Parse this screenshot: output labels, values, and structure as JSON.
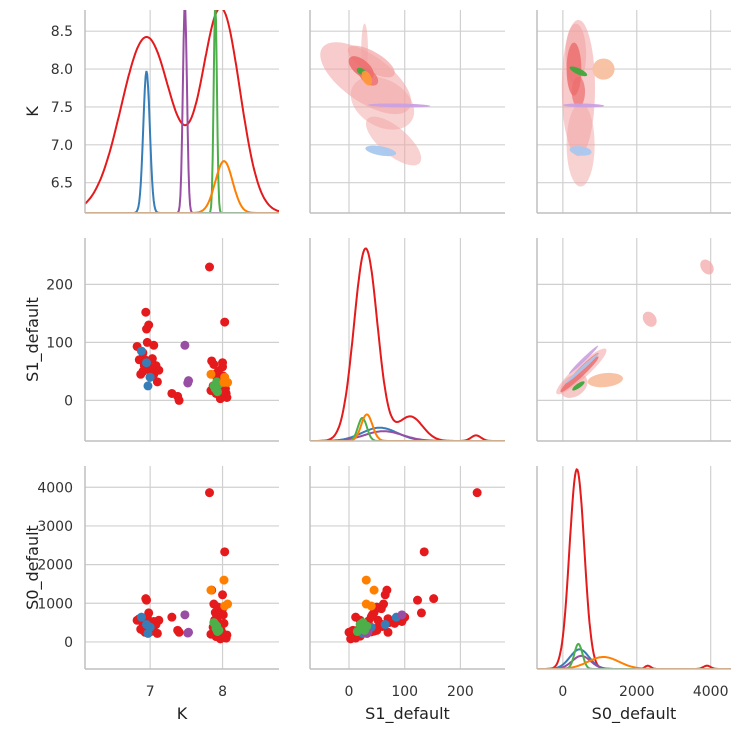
{
  "chart_data": {
    "type": "pairplot",
    "variables": [
      "K",
      "S1_default",
      "S0_default"
    ],
    "axis_labels": {
      "x": [
        "K",
        "S1_default",
        "S0_default"
      ],
      "y": [
        "K",
        "S1_default",
        "S0_default"
      ]
    },
    "ranges": {
      "K": [
        6.1,
        8.78
      ],
      "S1_default": [
        -70,
        280
      ],
      "S0_default": [
        -700,
        4550
      ]
    },
    "density_ranges": {
      "K": [
        0,
        0.9
      ],
      "S1_default": [
        0,
        0.029
      ],
      "S0_default": [
        0,
        0.00186
      ]
    },
    "ticks": {
      "K": {
        "x": [
          {
            "v": 7,
            "label": "7"
          },
          {
            "v": 8,
            "label": "8"
          }
        ],
        "y": [
          {
            "v": 6.5,
            "label": "6.5"
          },
          {
            "v": 7.0,
            "label": "7.0"
          },
          {
            "v": 7.5,
            "label": "7.5"
          },
          {
            "v": 8.0,
            "label": "8.0"
          },
          {
            "v": 8.5,
            "label": "8.5"
          }
        ]
      },
      "S1_default": {
        "x": [
          {
            "v": 0,
            "label": "0"
          },
          {
            "v": 100,
            "label": "100"
          },
          {
            "v": 200,
            "label": "200"
          }
        ],
        "y": [
          {
            "v": 0,
            "label": "0"
          },
          {
            "v": 100,
            "label": "100"
          },
          {
            "v": 200,
            "label": "200"
          }
        ]
      },
      "S0_default": {
        "x": [
          {
            "v": 0,
            "label": "0"
          },
          {
            "v": 2000,
            "label": "2000"
          },
          {
            "v": 4000,
            "label": "4000"
          }
        ],
        "y": [
          {
            "v": 0,
            "label": "0"
          },
          {
            "v": 1000,
            "label": "1000"
          },
          {
            "v": 2000,
            "label": "2000"
          },
          {
            "v": 3000,
            "label": "3000"
          },
          {
            "v": 4000,
            "label": "4000"
          }
        ]
      }
    },
    "grid": true,
    "groups": [
      {
        "color": "#e41a1c",
        "kde": {
          "K": [
            [
              6.95,
              0.35,
              0.78
            ],
            [
              7.98,
              0.26,
              0.9
            ]
          ],
          "S1_default": [
            [
              30,
              21,
              0.0275
            ],
            [
              110,
              22,
              0.0035
            ],
            [
              228,
              9,
              0.0008
            ]
          ],
          "S0_default": [
            [
              380,
              200,
              0.00183
            ],
            [
              2300,
              80,
              3e-05
            ],
            [
              3900,
              100,
              3e-05
            ]
          ]
        },
        "points": [
          [
            6.82,
            93,
            560
          ],
          [
            6.87,
            45,
            330
          ],
          [
            6.9,
            82,
            480
          ],
          [
            6.92,
            60,
            400
          ],
          [
            6.93,
            70,
            250
          ],
          [
            6.94,
            152,
            1120
          ],
          [
            6.95,
            123,
            1080
          ],
          [
            6.98,
            130,
            750
          ],
          [
            6.96,
            100,
            640
          ],
          [
            6.99,
            58,
            420
          ],
          [
            7.01,
            49,
            350
          ],
          [
            7.03,
            72,
            500
          ],
          [
            7.05,
            45,
            280
          ],
          [
            7.08,
            60,
            450
          ],
          [
            7.1,
            32,
            220
          ],
          [
            7.12,
            52,
            560
          ],
          [
            7.05,
            95,
            530
          ],
          [
            6.85,
            70,
            600
          ],
          [
            6.9,
            50,
            300
          ],
          [
            7.0,
            40,
            260
          ],
          [
            7.3,
            12,
            640
          ],
          [
            7.38,
            7,
            300
          ],
          [
            7.4,
            0,
            250
          ],
          [
            7.82,
            230,
            3860
          ],
          [
            7.85,
            68,
            1340
          ],
          [
            7.88,
            62,
            980
          ],
          [
            7.9,
            45,
            760
          ],
          [
            7.92,
            40,
            650
          ],
          [
            7.93,
            35,
            540
          ],
          [
            7.95,
            30,
            420
          ],
          [
            7.96,
            22,
            360
          ],
          [
            7.98,
            15,
            300
          ],
          [
            7.99,
            10,
            250
          ],
          [
            8.0,
            58,
            860
          ],
          [
            8.01,
            42,
            700
          ],
          [
            8.02,
            27,
            480
          ],
          [
            8.03,
            135,
            2330
          ],
          [
            8.04,
            20,
            150
          ],
          [
            8.05,
            12,
            100
          ],
          [
            8.06,
            5,
            180
          ],
          [
            7.84,
            17,
            200
          ],
          [
            7.87,
            25,
            380
          ],
          [
            7.91,
            12,
            140
          ],
          [
            8.0,
            65,
            1220
          ],
          [
            7.94,
            50,
            900
          ],
          [
            8.03,
            8,
            110
          ],
          [
            7.97,
            3,
            80
          ],
          [
            7.89,
            20,
            560
          ]
        ]
      },
      {
        "color": "#377eb8",
        "kde": {
          "K": [
            [
              6.95,
              0.045,
              0.63
            ]
          ],
          "S1_default": [
            [
              55,
              32,
              0.0019
            ]
          ],
          "S0_default": [
            [
              450,
              260,
              0.00018
            ]
          ]
        },
        "points": [
          [
            6.88,
            85,
            640
          ],
          [
            6.95,
            65,
            450
          ],
          [
            6.97,
            25,
            220
          ],
          [
            7.0,
            40,
            380
          ]
        ]
      },
      {
        "color": "#984ea3",
        "kde": {
          "K": [
            [
              7.48,
              0.028,
              0.93
            ]
          ],
          "S1_default": [
            [
              62,
              34,
              0.0014
            ]
          ],
          "S0_default": [
            [
              500,
              250,
              0.00012
            ]
          ]
        },
        "points": [
          [
            7.48,
            95,
            700
          ],
          [
            7.52,
            30,
            230
          ],
          [
            7.53,
            34,
            250
          ]
        ]
      },
      {
        "color": "#4daf4a",
        "kde": {
          "K": [
            [
              7.9,
              0.022,
              0.93
            ]
          ],
          "S1_default": [
            [
              24,
              8,
              0.0033
            ]
          ],
          "S0_default": [
            [
              420,
              110,
              0.00023
            ]
          ]
        },
        "points": [
          [
            7.88,
            25,
            500
          ],
          [
            7.9,
            20,
            450
          ],
          [
            7.92,
            32,
            410
          ],
          [
            7.93,
            15,
            270
          ],
          [
            7.95,
            28,
            300
          ],
          [
            7.91,
            22,
            350
          ]
        ]
      },
      {
        "color": "#ff7f00",
        "kde": {
          "K": [
            [
              8.02,
              0.12,
              0.23
            ]
          ],
          "S1_default": [
            [
              32,
              10,
              0.0038
            ]
          ],
          "S0_default": [
            [
              1100,
              420,
              0.00011
            ]
          ]
        },
        "points": [
          [
            7.84,
            45,
            1340
          ],
          [
            8.02,
            31,
            1600
          ],
          [
            8.07,
            31,
            980
          ],
          [
            8.03,
            40,
            930
          ]
        ]
      }
    ]
  }
}
